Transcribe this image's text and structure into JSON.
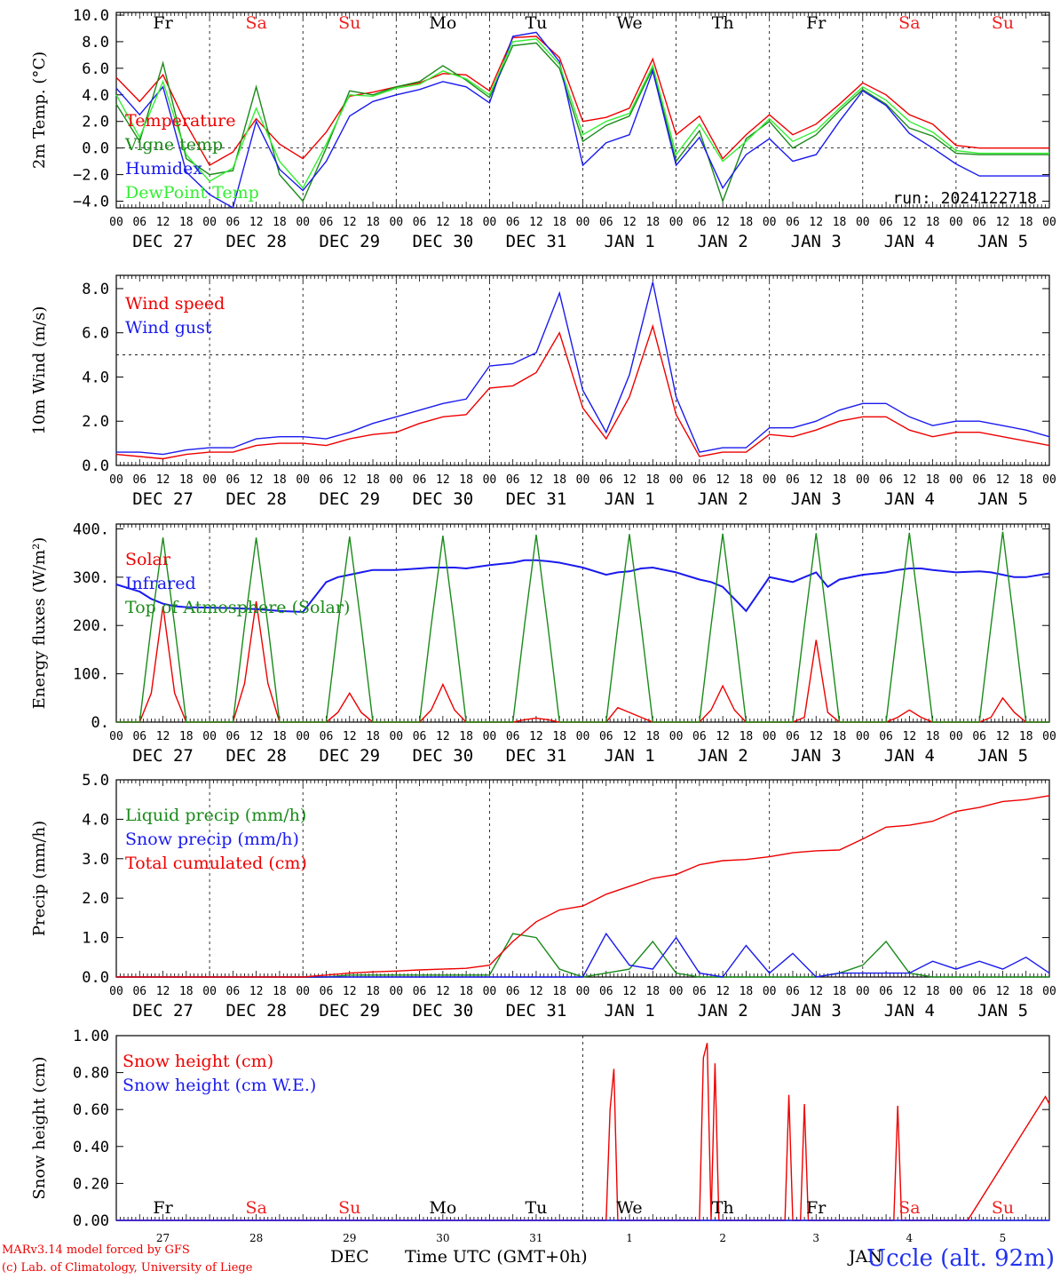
{
  "run_label": "run: 2024122718",
  "station": "Uccle (alt. 92m)",
  "credits": [
    "MARv3.14 model forced by GFS",
    "(c) Lab. of Climatology, University of Liege"
  ],
  "x_axis_title": "Time UTC (GMT+0h)",
  "month_labels": [
    "DEC",
    "JAN"
  ],
  "hour_ticks": [
    "00",
    "06",
    "12",
    "18"
  ],
  "date_labels": [
    "DEC 27",
    "DEC 28",
    "DEC 29",
    "DEC 30",
    "DEC 31",
    "JAN  1",
    "JAN  2",
    "JAN  3",
    "JAN  4",
    "JAN  5"
  ],
  "day_numbers": [
    "27",
    "28",
    "29",
    "30",
    "31",
    "1",
    "2",
    "3",
    "4",
    "5"
  ],
  "weekdays": [
    "Fr",
    "Sa",
    "Su",
    "Mo",
    "Tu",
    "We",
    "Th",
    "Fr",
    "Sa",
    "Su"
  ],
  "colors": {
    "red": "#ee0000",
    "green": "#1a8a1a",
    "blue": "#1a1aee",
    "lightgreen": "#33ee33",
    "weekend": "#ee2222"
  },
  "chart_data": [
    {
      "type": "line",
      "ylabel": "2m Temp. (°C)",
      "ylim": [
        -4.5,
        10.2
      ],
      "yticks": [
        -4.0,
        -2.0,
        0.0,
        2.0,
        4.0,
        6.0,
        8.0,
        10.0
      ],
      "ytick_labels": [
        "-4.0",
        "-2.0",
        "0.0",
        "2.0",
        "4.0",
        "6.0",
        "8.0",
        "10.0"
      ],
      "x_hours": [
        0,
        6,
        12,
        18,
        24,
        30,
        36,
        42,
        48,
        54,
        60,
        66,
        72,
        78,
        84,
        90,
        96,
        102,
        108,
        114,
        120,
        126,
        132,
        138,
        144,
        150,
        156,
        162,
        168,
        174,
        180,
        186,
        192,
        198,
        204,
        210,
        216,
        222,
        228,
        234,
        240
      ],
      "series": [
        {
          "name": "Temperature",
          "color": "#ee0000",
          "values": [
            5.3,
            3.5,
            5.5,
            1.8,
            -1.3,
            -0.3,
            2.2,
            0.3,
            -0.8,
            1.2,
            3.9,
            4.2,
            4.6,
            4.9,
            5.6,
            5.5,
            4.3,
            8.3,
            8.4,
            6.8,
            2.0,
            2.3,
            3.0,
            6.7,
            1.0,
            2.4,
            -0.8,
            1.0,
            2.5,
            1.0,
            1.8,
            3.3,
            4.9,
            4.0,
            2.5,
            1.8,
            0.2,
            0.0,
            0.0,
            0.0,
            0.0
          ]
        },
        {
          "name": "Vigne temp",
          "color": "#1a8a1a",
          "values": [
            3.3,
            0.5,
            6.4,
            -0.8,
            -2.0,
            -1.7,
            4.6,
            -2.0,
            -4.0,
            0.0,
            4.3,
            4.0,
            4.6,
            5.0,
            6.2,
            5.1,
            3.8,
            7.7,
            7.9,
            6.0,
            0.5,
            1.7,
            2.4,
            6.0,
            -1.0,
            1.3,
            -4.0,
            0.7,
            2.0,
            0.0,
            1.0,
            2.8,
            4.4,
            3.3,
            1.5,
            0.9,
            -0.4,
            -0.5,
            -0.5,
            -0.5,
            -0.5
          ]
        },
        {
          "name": "Humidex",
          "color": "#1a1aee",
          "values": [
            4.5,
            2.5,
            4.6,
            -1.8,
            -3.5,
            -4.5,
            2.0,
            -1.6,
            -3.2,
            -1.0,
            2.4,
            3.5,
            4.0,
            4.4,
            5.0,
            4.6,
            3.4,
            8.4,
            8.7,
            6.5,
            -1.3,
            0.4,
            1.0,
            5.8,
            -1.3,
            0.8,
            -3.0,
            -0.5,
            0.7,
            -1.0,
            -0.5,
            2.0,
            4.3,
            3.2,
            1.1,
            0.0,
            -1.2,
            -2.1,
            -2.1,
            -2.1,
            -2.1
          ]
        },
        {
          "name": "DewPoint Temp",
          "color": "#33ee33",
          "values": [
            4.0,
            0.8,
            5.0,
            -0.5,
            -2.5,
            -1.5,
            3.0,
            -1.0,
            -3.0,
            0.3,
            4.0,
            3.9,
            4.5,
            4.8,
            5.8,
            5.2,
            4.0,
            8.0,
            8.2,
            6.3,
            1.0,
            2.0,
            2.6,
            6.2,
            -0.5,
            1.8,
            -1.0,
            0.5,
            2.2,
            0.5,
            1.3,
            3.0,
            4.6,
            3.6,
            2.0,
            1.2,
            -0.2,
            -0.4,
            -0.4,
            -0.4,
            -0.4
          ]
        }
      ],
      "reference_lines": [
        0.0
      ],
      "legend": "left"
    },
    {
      "type": "line",
      "ylabel": "10m Wind (m/s)",
      "ylim": [
        0,
        8.6
      ],
      "yticks": [
        0.0,
        2.0,
        4.0,
        6.0,
        8.0
      ],
      "ytick_labels": [
        "0.0",
        "2.0",
        "4.0",
        "6.0",
        "8.0"
      ],
      "x_hours": [
        0,
        6,
        12,
        18,
        24,
        30,
        36,
        42,
        48,
        54,
        60,
        66,
        72,
        78,
        84,
        90,
        96,
        102,
        108,
        114,
        120,
        126,
        132,
        138,
        144,
        150,
        156,
        162,
        168,
        174,
        180,
        186,
        192,
        198,
        204,
        210,
        216,
        222,
        228,
        234,
        240
      ],
      "series": [
        {
          "name": "Wind speed",
          "color": "#ee0000",
          "values": [
            0.5,
            0.4,
            0.3,
            0.5,
            0.6,
            0.6,
            0.9,
            1.0,
            1.0,
            0.9,
            1.2,
            1.4,
            1.5,
            1.9,
            2.2,
            2.3,
            3.5,
            3.6,
            4.2,
            6.0,
            2.6,
            1.2,
            3.1,
            6.3,
            2.3,
            0.4,
            0.6,
            0.6,
            1.4,
            1.3,
            1.6,
            2.0,
            2.2,
            2.2,
            1.6,
            1.3,
            1.5,
            1.5,
            1.3,
            1.1,
            0.9
          ]
        },
        {
          "name": "Wind gust",
          "color": "#1a1aee",
          "values": [
            0.6,
            0.6,
            0.5,
            0.7,
            0.8,
            0.8,
            1.2,
            1.3,
            1.3,
            1.2,
            1.5,
            1.9,
            2.2,
            2.5,
            2.8,
            3.0,
            4.5,
            4.6,
            5.1,
            7.8,
            3.4,
            1.5,
            4.1,
            8.3,
            3.1,
            0.6,
            0.8,
            0.8,
            1.7,
            1.7,
            2.0,
            2.5,
            2.8,
            2.8,
            2.2,
            1.8,
            2.0,
            2.0,
            1.8,
            1.6,
            1.3
          ]
        }
      ],
      "reference_lines": [
        5.0
      ],
      "legend": "left"
    },
    {
      "type": "line",
      "ylabel": "Energy fluxes (W/m²)",
      "ylim": [
        0,
        410
      ],
      "yticks": [
        0,
        100,
        200,
        300,
        400
      ],
      "ytick_labels": [
        "0.",
        "100.",
        "200.",
        "300.",
        "400."
      ],
      "x_hours": [
        0,
        6,
        9,
        12,
        15,
        18,
        24,
        30,
        33,
        36,
        39,
        42,
        48,
        54,
        57,
        60,
        63,
        66,
        72,
        78,
        81,
        84,
        87,
        90,
        96,
        102,
        105,
        108,
        111,
        114,
        120,
        126,
        129,
        132,
        135,
        138,
        144,
        150,
        153,
        156,
        159,
        162,
        168,
        174,
        177,
        180,
        183,
        186,
        192,
        198,
        201,
        204,
        207,
        210,
        216,
        222,
        225,
        228,
        231,
        234,
        240
      ],
      "series": [
        {
          "name": "Solar",
          "color": "#ee0000",
          "values": [
            0,
            0,
            60,
            240,
            60,
            0,
            0,
            0,
            80,
            250,
            80,
            0,
            0,
            0,
            20,
            60,
            20,
            0,
            0,
            0,
            25,
            78,
            25,
            0,
            0,
            0,
            5,
            8,
            5,
            0,
            0,
            0,
            30,
            20,
            10,
            0,
            0,
            0,
            25,
            75,
            25,
            0,
            0,
            0,
            10,
            170,
            20,
            0,
            0,
            0,
            10,
            25,
            10,
            0,
            0,
            0,
            10,
            50,
            20,
            0,
            0
          ]
        },
        {
          "name": "Infrared",
          "color": "#1a1aee",
          "values": [
            285,
            270,
            255,
            245,
            240,
            238,
            237,
            236,
            235,
            234,
            232,
            230,
            228,
            290,
            300,
            305,
            310,
            315,
            315,
            318,
            320,
            320,
            320,
            318,
            325,
            330,
            335,
            335,
            333,
            330,
            320,
            305,
            310,
            312,
            318,
            320,
            310,
            295,
            290,
            280,
            255,
            230,
            300,
            290,
            300,
            310,
            280,
            295,
            305,
            310,
            315,
            318,
            318,
            315,
            310,
            312,
            310,
            305,
            300,
            300,
            308
          ]
        },
        {
          "name": "Top of Atmosphere (Solar)",
          "color": "#1a8a1a",
          "values": [
            0,
            0,
            200,
            382,
            200,
            0,
            0,
            0,
            200,
            382,
            200,
            0,
            0,
            0,
            200,
            384,
            200,
            0,
            0,
            0,
            200,
            386,
            200,
            0,
            0,
            0,
            200,
            388,
            200,
            0,
            0,
            0,
            200,
            389,
            200,
            0,
            0,
            0,
            200,
            390,
            200,
            0,
            0,
            0,
            200,
            391,
            200,
            0,
            0,
            0,
            200,
            392,
            200,
            0,
            0,
            0,
            200,
            394,
            200,
            0,
            0
          ]
        }
      ],
      "legend": "left"
    },
    {
      "type": "line",
      "ylabel": "Precip (mm/h)",
      "ylim": [
        0,
        5.0
      ],
      "yticks": [
        0.0,
        1.0,
        2.0,
        3.0,
        4.0,
        5.0
      ],
      "ytick_labels": [
        "0.0",
        "1.0",
        "2.0",
        "3.0",
        "4.0",
        "5.0"
      ],
      "x_hours": [
        0,
        6,
        12,
        18,
        24,
        30,
        36,
        42,
        48,
        54,
        60,
        66,
        72,
        78,
        84,
        90,
        96,
        102,
        108,
        114,
        120,
        126,
        132,
        138,
        144,
        150,
        156,
        162,
        168,
        174,
        180,
        186,
        192,
        198,
        204,
        210,
        216,
        222,
        228,
        234,
        240
      ],
      "series": [
        {
          "name": "Liquid precip (mm/h)",
          "color": "#1a8a1a",
          "values": [
            0,
            0,
            0,
            0,
            0,
            0,
            0,
            0,
            0,
            0,
            0.05,
            0.05,
            0.05,
            0.05,
            0.05,
            0.05,
            0.05,
            1.1,
            1.0,
            0.2,
            0,
            0.1,
            0.2,
            0.9,
            0.1,
            0,
            0,
            0,
            0,
            0,
            0,
            0.1,
            0.3,
            0.9,
            0.1,
            0,
            0,
            0,
            0,
            0,
            0
          ]
        },
        {
          "name": "Snow precip (mm/h)",
          "color": "#1a1aee",
          "values": [
            0,
            0,
            0,
            0,
            0,
            0,
            0,
            0,
            0,
            0,
            0,
            0,
            0,
            0,
            0,
            0,
            0,
            0,
            0,
            0,
            0,
            1.1,
            0.3,
            0.2,
            1.0,
            0.1,
            0,
            0.8,
            0.1,
            0.6,
            0,
            0.1,
            0.1,
            0.1,
            0.1,
            0.4,
            0.2,
            0.4,
            0.2,
            0.5,
            0.1
          ]
        },
        {
          "name": "Total cumulated (cm)",
          "color": "#ee0000",
          "values": [
            0,
            0,
            0,
            0,
            0,
            0,
            0,
            0,
            0,
            0.05,
            0.1,
            0.13,
            0.15,
            0.18,
            0.2,
            0.22,
            0.3,
            0.9,
            1.4,
            1.7,
            1.8,
            2.1,
            2.3,
            2.5,
            2.6,
            2.85,
            2.95,
            2.98,
            3.05,
            3.15,
            3.2,
            3.22,
            3.5,
            3.8,
            3.85,
            3.95,
            4.2,
            4.3,
            4.45,
            4.5,
            4.6
          ]
        }
      ],
      "legend": "left"
    },
    {
      "type": "line",
      "ylabel": "Snow height (cm)",
      "ylim": [
        0,
        1.0
      ],
      "yticks": [
        0.0,
        0.2,
        0.4,
        0.6,
        0.8,
        1.0
      ],
      "ytick_labels": [
        "0.00",
        "0.20",
        "0.40",
        "0.60",
        "0.80",
        "1.00"
      ],
      "x_hours": [
        0,
        114,
        120,
        126,
        127,
        128,
        129,
        150,
        151,
        152,
        153,
        154,
        155,
        172,
        173,
        174,
        176,
        177,
        178,
        200,
        201,
        202,
        217,
        218,
        219,
        239,
        240
      ],
      "series": [
        {
          "name": "Snow height (cm)",
          "color": "#ee0000",
          "values": [
            0,
            0,
            0,
            0,
            0.6,
            0.82,
            0,
            0,
            0.88,
            0.96,
            0,
            0.85,
            0,
            0,
            0.68,
            0,
            0,
            0.63,
            0,
            0,
            0.62,
            0,
            0,
            0,
            0,
            0.67,
            0.63
          ]
        },
        {
          "name": "Snow height (cm W.E.)",
          "color": "#1a1aee",
          "values": [
            0,
            0,
            0,
            0,
            0,
            0,
            0,
            0,
            0,
            0,
            0,
            0,
            0,
            0,
            0,
            0,
            0,
            0,
            0,
            0,
            0,
            0,
            0,
            0,
            0,
            0,
            0
          ]
        }
      ],
      "legend": "left"
    }
  ]
}
